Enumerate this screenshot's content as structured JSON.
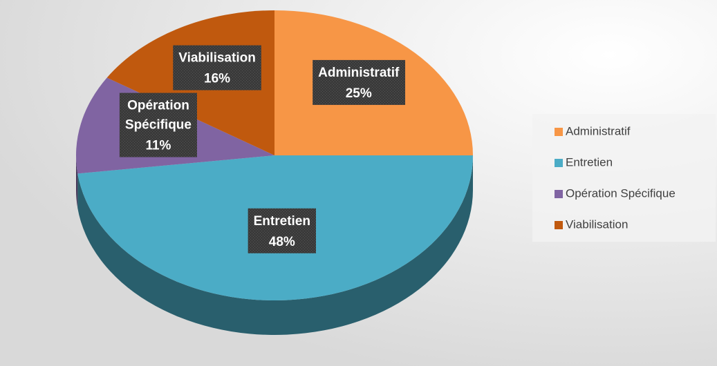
{
  "chart_data": {
    "type": "pie",
    "categories": [
      "Administratif",
      "Entretien",
      "Opération Spécifique",
      "Viabilisation"
    ],
    "values": [
      25,
      48,
      11,
      16
    ],
    "value_labels": [
      "25%",
      "48%",
      "11%",
      "16%"
    ],
    "colors": [
      "#f79646",
      "#4bacc6",
      "#8064a2",
      "#c0590e"
    ],
    "legend": "right"
  }
}
